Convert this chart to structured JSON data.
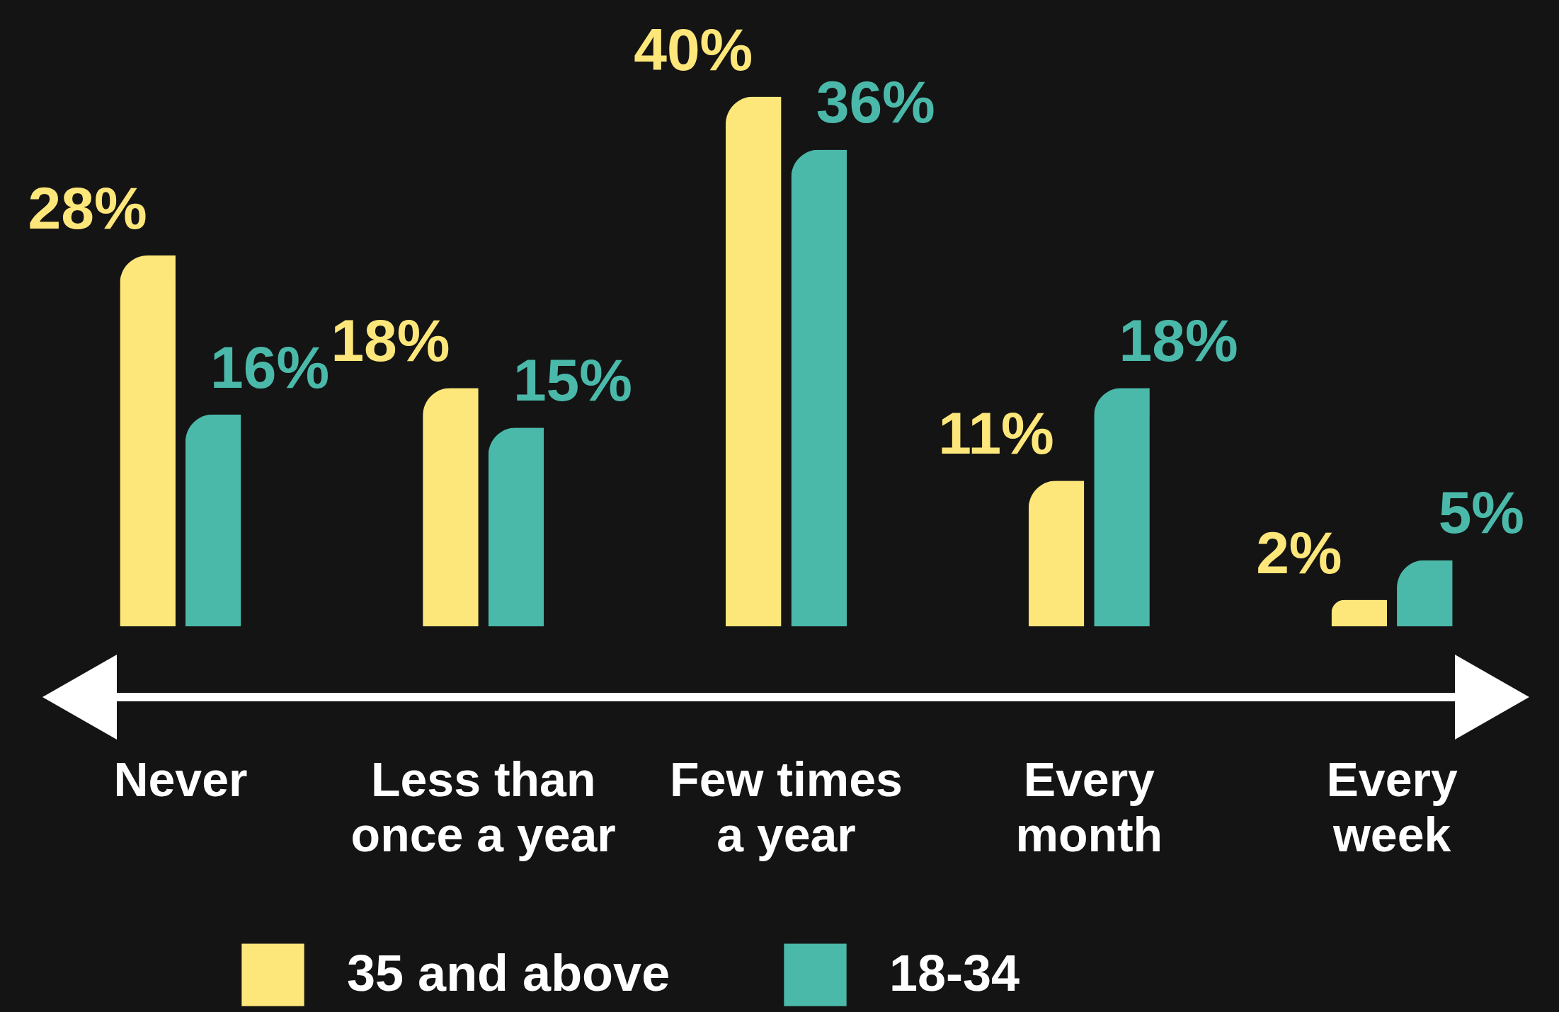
{
  "chart_data": {
    "type": "bar",
    "categories": [
      "Never",
      "Less than\nonce a year",
      "Few times\na year",
      "Every\nmonth",
      "Every\nweek"
    ],
    "series": [
      {
        "name": "35 and above",
        "color": "#fee77a",
        "values": [
          28,
          18,
          40,
          11,
          2
        ],
        "value_labels": [
          "28%",
          "18%",
          "40%",
          "11%",
          "2%"
        ]
      },
      {
        "name": "18-34",
        "color": "#4ab9aa",
        "values": [
          16,
          15,
          36,
          18,
          5
        ],
        "value_labels": [
          "16%",
          "15%",
          "36%",
          "18%",
          "5%"
        ]
      }
    ],
    "legend": "bottom"
  }
}
